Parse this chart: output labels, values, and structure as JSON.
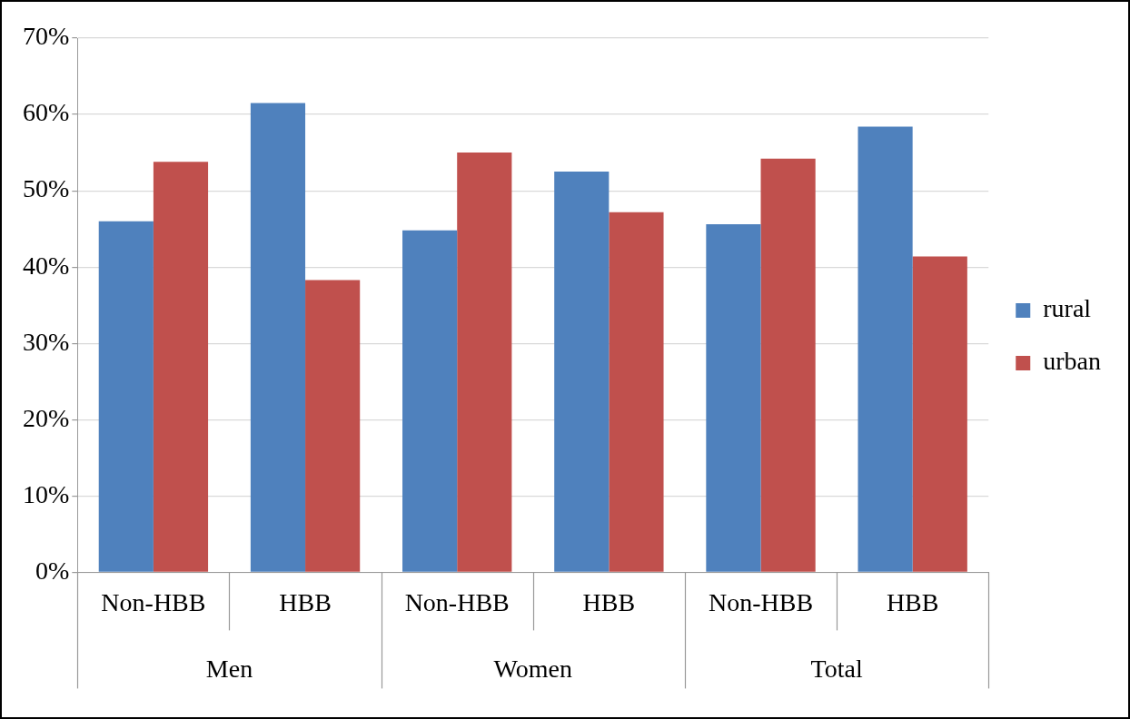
{
  "chart_data": {
    "type": "bar",
    "categories": [
      "Non-HBB",
      "HBB",
      "Non-HBB",
      "HBB",
      "Non-HBB",
      "HBB"
    ],
    "series": [
      {
        "name": "rural",
        "color": "#4f81bd",
        "values": [
          46.0,
          61.5,
          44.8,
          52.5,
          45.6,
          58.4
        ]
      },
      {
        "name": "urban",
        "color": "#c0504d",
        "values": [
          53.8,
          38.3,
          55.0,
          47.2,
          54.2,
          41.4
        ]
      }
    ],
    "annotations": [
      "Men",
      "Women",
      "Total"
    ],
    "ylim": [
      0,
      70
    ],
    "yticks": [
      {
        "value": 0,
        "label": "0%"
      },
      {
        "value": 10,
        "label": "10%"
      },
      {
        "value": 20,
        "label": "20%"
      },
      {
        "value": 30,
        "label": "30%"
      },
      {
        "value": 40,
        "label": "40%"
      },
      {
        "value": 50,
        "label": "50%"
      },
      {
        "value": 60,
        "label": "60%"
      },
      {
        "value": 70,
        "label": "70%"
      }
    ],
    "grid": "y",
    "legend": "right"
  }
}
